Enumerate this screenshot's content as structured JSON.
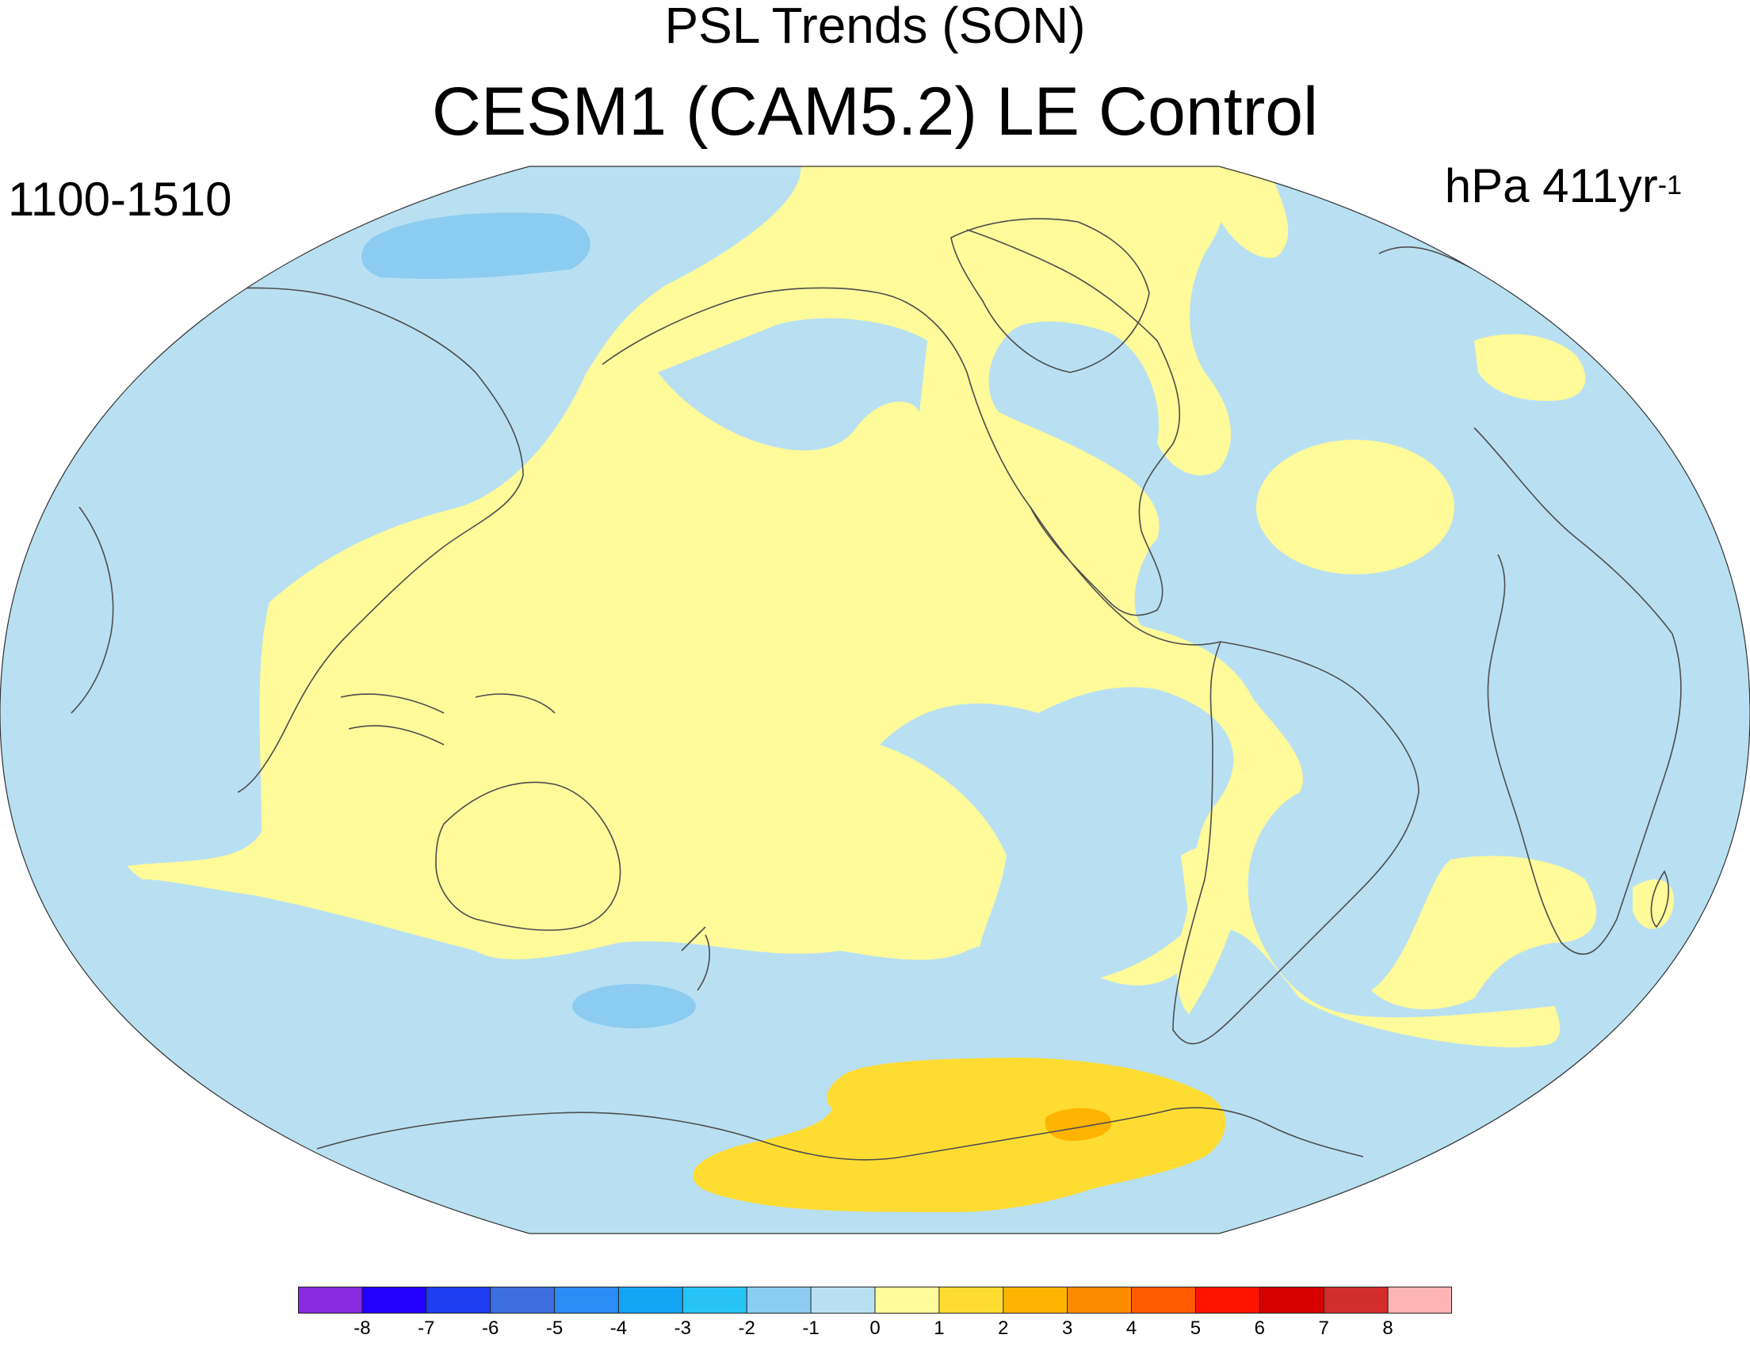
{
  "title": {
    "line1": "PSL Trends (SON)",
    "line2": "CESM1 (CAM5.2) LE Control"
  },
  "left_label": "1100-1510",
  "right_label": {
    "text": "hPa 411yr",
    "superscript": "-1"
  },
  "colorbar": {
    "labels": [
      "-8",
      "-7",
      "-6",
      "-5",
      "-4",
      "-3",
      "-2",
      "-1",
      "0",
      "1",
      "2",
      "3",
      "4",
      "5",
      "6",
      "7",
      "8"
    ],
    "colors": [
      "#8a2be2",
      "#2400ff",
      "#1e3cf0",
      "#3c6ee0",
      "#2a8cf5",
      "#14a5f5",
      "#28c3f5",
      "#8cccf0",
      "#b9e0f2",
      "#fffa9a",
      "#ffdc32",
      "#ffb400",
      "#ff8c00",
      "#ff5a00",
      "#ff1400",
      "#d70000",
      "#d22d2d",
      "#ffb4b4"
    ]
  },
  "map_colors": {
    "neg1_0": "#b9e0f2",
    "neg2_neg1": "#8cccf0",
    "pos0_1": "#fffa9a",
    "pos1_2": "#ffdc32",
    "pos2_3": "#ffb400",
    "coast": "#4d4d4d"
  }
}
